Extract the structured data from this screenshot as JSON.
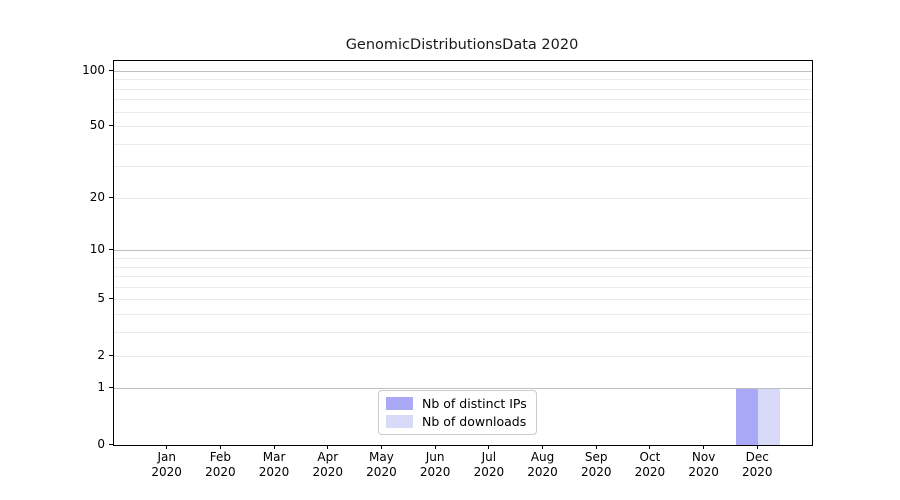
{
  "chart_data": {
    "type": "bar",
    "title": "GenomicDistributionsData 2020",
    "categories": [
      "Jan",
      "Feb",
      "Mar",
      "Apr",
      "May",
      "Jun",
      "Jul",
      "Aug",
      "Sep",
      "Oct",
      "Nov",
      "Dec"
    ],
    "x_year": "2020",
    "series": [
      {
        "name": "Nb of distinct IPs",
        "color": "#a9a9f8",
        "values": [
          0,
          0,
          0,
          0,
          0,
          0,
          0,
          0,
          0,
          0,
          0,
          1
        ]
      },
      {
        "name": "Nb of downloads",
        "color": "#d9d9f8",
        "values": [
          0,
          0,
          0,
          0,
          0,
          0,
          0,
          0,
          0,
          0,
          0,
          1
        ]
      }
    ],
    "yscale": "log1p",
    "ylim": [
      0,
      113.5
    ],
    "yticks": [
      0,
      1,
      2,
      5,
      10,
      20,
      50,
      100
    ],
    "major_grid_values": [
      1,
      10,
      100
    ],
    "minor_grid_values": [
      2,
      3,
      4,
      5,
      6,
      7,
      8,
      9,
      20,
      30,
      40,
      50,
      60,
      70,
      80,
      90
    ],
    "grid": "horizontal",
    "legend_position": "lower center",
    "colors": {
      "major_grid": "#c0c0c0",
      "minor_grid": "#ebebeb",
      "spine": "#000000",
      "text": "#000000"
    }
  }
}
